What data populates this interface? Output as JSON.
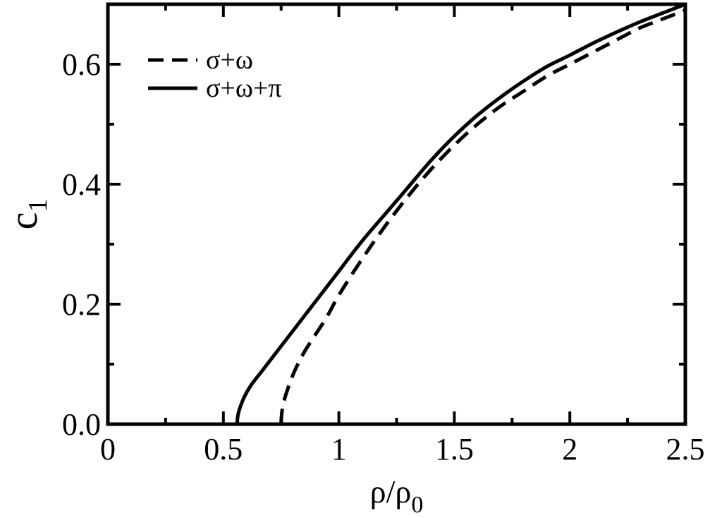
{
  "chart_data": {
    "type": "line",
    "title": "",
    "xlabel": "ρ/ρ",
    "xlabel_sub": "0",
    "ylabel": "c",
    "ylabel_sub": "1",
    "xlim": [
      0,
      2.5
    ],
    "ylim": [
      0,
      0.7
    ],
    "xticks": [
      {
        "value": 0,
        "label": "0"
      },
      {
        "value": 0.5,
        "label": "0.5"
      },
      {
        "value": 1,
        "label": "1"
      },
      {
        "value": 1.5,
        "label": "1.5"
      },
      {
        "value": 2,
        "label": "2"
      },
      {
        "value": 2.5,
        "label": "2.5"
      }
    ],
    "yticks": [
      {
        "value": 0,
        "label": "0.0"
      },
      {
        "value": 0.2,
        "label": "0.2"
      },
      {
        "value": 0.4,
        "label": "0.4"
      },
      {
        "value": 0.6,
        "label": "0.6"
      }
    ],
    "grid": false,
    "legend_position": "top-left",
    "series": [
      {
        "name": "σ+ω",
        "style": "dashed",
        "color": "#000000",
        "x": [
          0.75,
          0.752,
          0.76,
          0.78,
          0.81,
          0.85,
          0.9,
          0.95,
          1.0,
          1.1,
          1.2,
          1.3,
          1.4,
          1.5,
          1.6,
          1.7,
          1.8,
          1.9,
          2.0,
          2.1,
          2.2,
          2.3,
          2.4,
          2.5
        ],
        "y": [
          0.0,
          0.015,
          0.035,
          0.06,
          0.09,
          0.12,
          0.15,
          0.18,
          0.215,
          0.275,
          0.33,
          0.38,
          0.425,
          0.465,
          0.5,
          0.53,
          0.555,
          0.58,
          0.6,
          0.62,
          0.64,
          0.66,
          0.675,
          0.69
        ]
      },
      {
        "name": "σ+ω+π",
        "style": "solid",
        "color": "#000000",
        "x": [
          0.56,
          0.562,
          0.57,
          0.59,
          0.62,
          0.66,
          0.7,
          0.75,
          0.8,
          0.9,
          1.0,
          1.1,
          1.2,
          1.3,
          1.4,
          1.5,
          1.6,
          1.7,
          1.8,
          1.9,
          2.0,
          2.1,
          2.2,
          2.3,
          2.4,
          2.5
        ],
        "y": [
          0.0,
          0.012,
          0.025,
          0.045,
          0.065,
          0.085,
          0.105,
          0.13,
          0.155,
          0.205,
          0.255,
          0.305,
          0.35,
          0.395,
          0.44,
          0.48,
          0.515,
          0.545,
          0.572,
          0.596,
          0.615,
          0.635,
          0.653,
          0.67,
          0.685,
          0.7
        ]
      }
    ]
  }
}
